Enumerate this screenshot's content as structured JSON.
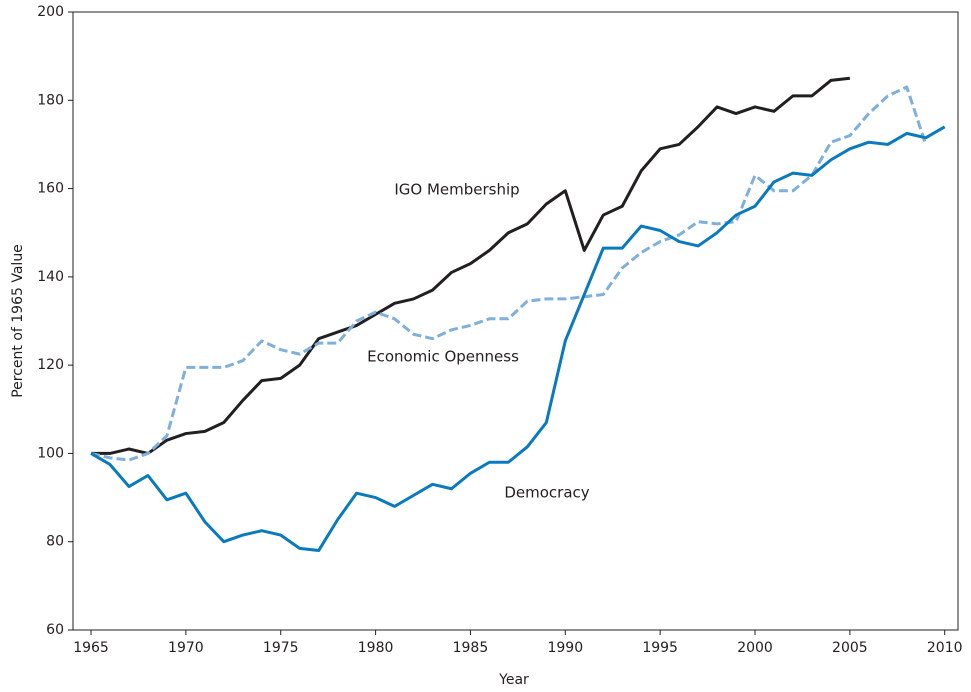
{
  "chart_data": {
    "type": "line",
    "xlabel": "Year",
    "ylabel": "Percent of 1965 Value",
    "x": [
      1965,
      1966,
      1967,
      1968,
      1969,
      1970,
      1971,
      1972,
      1973,
      1974,
      1975,
      1976,
      1977,
      1978,
      1979,
      1980,
      1981,
      1982,
      1983,
      1984,
      1985,
      1986,
      1987,
      1988,
      1989,
      1990,
      1991,
      1992,
      1993,
      1994,
      1995,
      1996,
      1997,
      1998,
      1999,
      2000,
      2001,
      2002,
      2003,
      2004,
      2005,
      2006,
      2007,
      2008,
      2009,
      2010
    ],
    "series": [
      {
        "name": "IGO Membership",
        "color": "#231f20",
        "dashed": false,
        "values": [
          100,
          100,
          101,
          100,
          103,
          104.5,
          105,
          107,
          112,
          116.5,
          117,
          120,
          126,
          127.5,
          129,
          131.5,
          134,
          135,
          137,
          141,
          143,
          146,
          150,
          152,
          156.5,
          159.5,
          146,
          154,
          156,
          164,
          169,
          170,
          174,
          178.5,
          177,
          178.5,
          177.5,
          181,
          181,
          184.5,
          185,
          null,
          null,
          null,
          null,
          null
        ]
      },
      {
        "name": "Economic Openness",
        "color": "#7fb0dc",
        "dashed": true,
        "values": [
          100,
          99,
          98.5,
          100,
          104,
          119.5,
          119.5,
          119.5,
          121,
          125.5,
          123.5,
          122.5,
          125,
          125,
          130,
          132,
          130.5,
          127,
          126,
          128,
          129,
          130.5,
          130.5,
          134.5,
          135,
          135,
          135.5,
          136,
          142,
          145.5,
          148,
          149.5,
          152.5,
          152,
          152.5,
          163,
          159.5,
          159.5,
          163,
          170.5,
          172,
          177,
          181,
          183,
          170,
          null
        ]
      },
      {
        "name": "Democracy",
        "color": "#0a7abf",
        "dashed": false,
        "values": [
          100,
          97.5,
          92.5,
          95,
          89.5,
          91,
          84.5,
          80,
          81.5,
          82.5,
          81.5,
          78.5,
          78,
          85,
          91,
          90,
          88,
          90.5,
          93,
          92,
          95.5,
          98,
          98,
          101.5,
          107,
          125.5,
          136,
          146.5,
          146.5,
          151.5,
          150.5,
          148,
          147,
          150,
          154,
          156,
          161.5,
          163.5,
          163,
          166.5,
          169,
          170.5,
          170,
          172.5,
          171.5,
          174
        ]
      }
    ],
    "xlim": [
      1964.05,
      2010.7
    ],
    "ylim": [
      60,
      200
    ],
    "xticks": [
      1965,
      1970,
      1975,
      1980,
      1985,
      1990,
      1995,
      2000,
      2005,
      2010
    ],
    "yticks": [
      60,
      80,
      100,
      120,
      140,
      160,
      180,
      200
    ]
  }
}
